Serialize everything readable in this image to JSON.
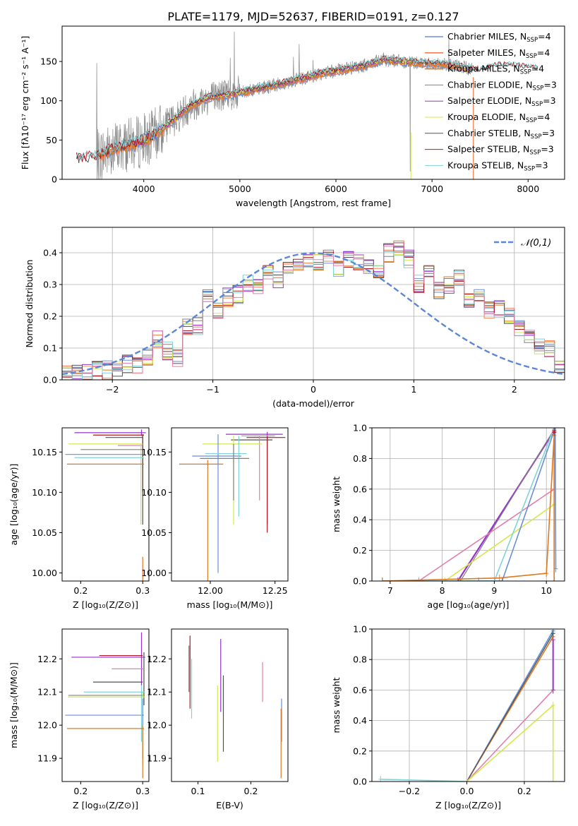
{
  "figure_title": "PLATE=1179, MJD=52637, FIBERID=0191, z=0.127",
  "colors": {
    "chabrier_miles": "#6a8fd6",
    "salpeter_miles": "#f08050",
    "kroupa_miles": "#e07820",
    "chabrier_elodie": "#808080",
    "salpeter_elodie": "#9932cc",
    "kroupa_elodie": "#d4e84a",
    "chabrier_stelib": "#505050",
    "salpeter_stelib": "#b0181e",
    "kroupa_stelib": "#7fd3d8",
    "pink": "#e080b0",
    "gauss": "#5b87d6"
  },
  "chart_data": [
    {
      "id": "spectrum",
      "type": "line",
      "xlabel": "wavelength [Angstrom, rest frame]",
      "ylabel": "Flux [fλ10⁻¹⁷ erg cm⁻² s⁻¹ A⁻¹]",
      "xlim": [
        3150,
        8380
      ],
      "ylim": [
        0,
        195
      ],
      "xticks": [
        4000,
        5000,
        6000,
        7000,
        8000
      ],
      "yticks": [
        0,
        50,
        100,
        150
      ],
      "legend_position": "top-right",
      "legend": [
        "Chabrier MILES, N_SSP=4",
        "Salpeter MILES, N_SSP=4",
        "Kroupa MILES, N_SSP=4",
        "Chabrier ELODIE, N_SSP=3",
        "Salpeter ELODIE, N_SSP=3",
        "Kroupa ELODIE, N_SSP=4",
        "Chabrier STELIB, N_SSP=3",
        "Salpeter STELIB, N_SSP=3",
        "Kroupa STELIB, N_SSP=3"
      ],
      "model_x": [
        3300,
        3500,
        3700,
        3900,
        4100,
        4300,
        4500,
        4700,
        4900,
        5100,
        5300,
        5500,
        5700,
        5900,
        6100,
        6300,
        6500,
        6700,
        6900,
        7100,
        7300,
        7500,
        7700,
        7900,
        8100
      ],
      "model_y": [
        25,
        28,
        40,
        45,
        55,
        75,
        95,
        105,
        108,
        113,
        118,
        124,
        130,
        136,
        140,
        145,
        152,
        150,
        148,
        147,
        143,
        138,
        145,
        143,
        140
      ]
    },
    {
      "id": "residual_histogram",
      "type": "bar",
      "xlabel": "(data-model)/error",
      "ylabel": "Normed distribution",
      "xlim": [
        -2.5,
        2.5
      ],
      "ylim": [
        0,
        0.48
      ],
      "xticks": [
        -2,
        -1,
        0,
        1,
        2
      ],
      "yticks": [
        0.0,
        0.1,
        0.2,
        0.3,
        0.4
      ],
      "grid": true,
      "legend": [
        "𝒩(0,1)"
      ],
      "legend_position": "top-right",
      "bin_edges_start": -2.5,
      "bin_width": 0.1,
      "profile": [
        0.02,
        0.02,
        0.02,
        0.03,
        0.03,
        0.03,
        0.05,
        0.05,
        0.07,
        0.13,
        0.09,
        0.07,
        0.17,
        0.17,
        0.27,
        0.22,
        0.26,
        0.27,
        0.3,
        0.29,
        0.34,
        0.31,
        0.36,
        0.35,
        0.38,
        0.37,
        0.39,
        0.35,
        0.38,
        0.37,
        0.36,
        0.34,
        0.4,
        0.42,
        0.38,
        0.3,
        0.35,
        0.28,
        0.3,
        0.32,
        0.25,
        0.27,
        0.22,
        0.22,
        0.2,
        0.16,
        0.13,
        0.11,
        0.1,
        0.04
      ]
    },
    {
      "id": "age_vs_Z",
      "type": "scatter",
      "xlabel": "Z [log₁₀(Z/Z⊙)]",
      "ylabel": "age  [log₁₀(age/yr)]",
      "xlim": [
        0.17,
        0.31
      ],
      "ylim": [
        9.99,
        10.18
      ],
      "xticks": [
        0.2,
        0.3
      ],
      "yticks": [
        10.0,
        10.05,
        10.1,
        10.15
      ]
    },
    {
      "id": "age_vs_mass",
      "type": "scatter",
      "xlabel": "mass [log₁₀(M/M⊙)]",
      "xlim": [
        11.85,
        12.3
      ],
      "ylim": [
        9.99,
        10.18
      ],
      "xticks": [
        12.0,
        12.25
      ],
      "yticks": [
        10.0,
        10.05,
        10.1,
        10.15
      ]
    },
    {
      "id": "weight_vs_age",
      "type": "line",
      "xlabel": "age  [log₁₀(age/yr)]",
      "ylabel": "mass weight",
      "xlim": [
        6.65,
        10.35
      ],
      "ylim": [
        0,
        1.0
      ],
      "xticks": [
        7,
        8,
        9,
        10
      ],
      "yticks": [
        0.0,
        0.2,
        0.4,
        0.6,
        0.8,
        1.0
      ],
      "grid": true
    },
    {
      "id": "mass_vs_Z",
      "type": "scatter",
      "xlabel": "Z [log₁₀(Z/Z⊙)]",
      "ylabel": "mass [log₁₀(M/M⊙)]",
      "xlim": [
        0.17,
        0.31
      ],
      "ylim": [
        11.83,
        12.29
      ],
      "xticks": [
        0.2,
        0.3
      ],
      "yticks": [
        11.9,
        12.0,
        12.1,
        12.2
      ]
    },
    {
      "id": "mass_vs_ebv",
      "type": "scatter",
      "xlabel": "E(B-V)",
      "xlim": [
        0.05,
        0.27
      ],
      "ylim": [
        11.83,
        12.29
      ],
      "xticks": [
        0.1,
        0.2
      ],
      "yticks": [
        11.9,
        12.0,
        12.1,
        12.2
      ]
    },
    {
      "id": "weight_vs_Z",
      "type": "line",
      "xlabel": "Z [log₁₀(Z/Z⊙)]",
      "ylabel": "mass weight",
      "xlim": [
        -0.33,
        0.34
      ],
      "ylim": [
        0,
        1.0
      ],
      "xticks": [
        -0.2,
        0.0,
        0.2
      ],
      "yticks": [
        0.0,
        0.2,
        0.4,
        0.6,
        0.8,
        1.0
      ],
      "grid": true
    }
  ]
}
